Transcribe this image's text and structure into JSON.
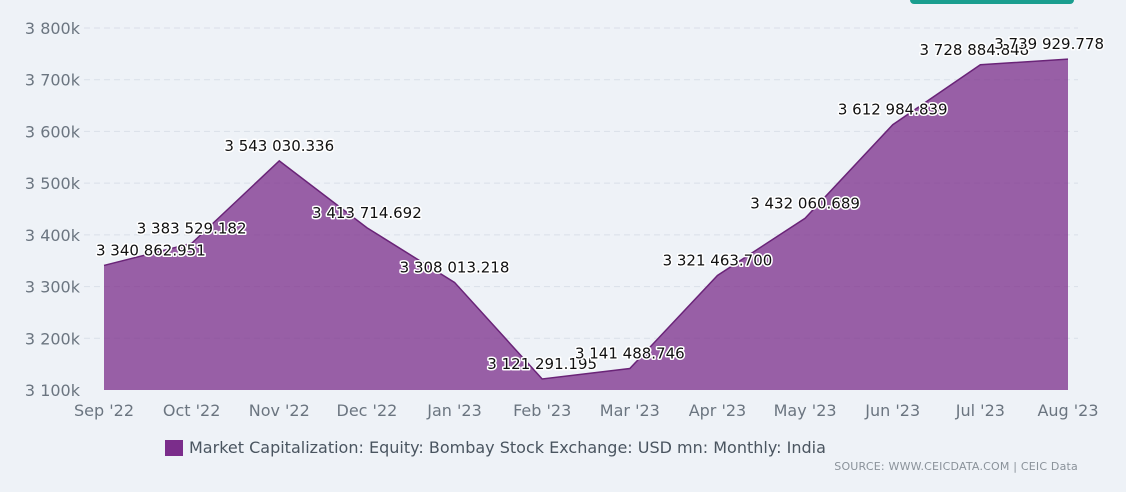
{
  "chart_data": {
    "type": "area",
    "categories": [
      "Sep '22",
      "Oct '22",
      "Nov '22",
      "Dec '22",
      "Jan '23",
      "Feb '23",
      "Mar '23",
      "Apr '23",
      "May '23",
      "Jun '23",
      "Jul '23",
      "Aug '23"
    ],
    "series": [
      {
        "name": "Market Capitalization: Equity: Bombay Stock Exchange: USD mn: Monthly: India",
        "values": [
          3340862.951,
          3383529.182,
          3543030.336,
          3413714.692,
          3308013.218,
          3121291.195,
          3141488.746,
          3321463.7,
          3432060.689,
          3612984.839,
          3728884.848,
          3739929.778
        ],
        "labels": [
          "3 340 862.951",
          "3 383 529.182",
          "3 543 030.336",
          "3 413 714.692",
          "3 308 013.218",
          "3 121 291.195",
          "3 141 488.746",
          "3 321 463.700",
          "3 432 060.689",
          "3 612 984.839",
          "3 728 884.848",
          "3 739 929.778"
        ],
        "color": "#7b2d8b"
      }
    ],
    "yticks": [
      3100000,
      3200000,
      3300000,
      3400000,
      3500000,
      3600000,
      3700000,
      3800000
    ],
    "ytick_labels": [
      "3 100k",
      "3 200k",
      "3 300k",
      "3 400k",
      "3 500k",
      "3 600k",
      "3 700k",
      "3 800k"
    ],
    "ylim": [
      3100000,
      3800000
    ],
    "grid": true,
    "legend_position": "bottom-left"
  },
  "legend": {
    "label": "Market Capitalization: Equity: Bombay Stock Exchange: USD mn: Monthly: India"
  },
  "source": "SOURCE: WWW.CEICDATA.COM | CEIC Data",
  "colors": {
    "area": "#7b2d8b",
    "line": "#6a2478",
    "grid": "#d9dfe8",
    "axis_text": "#6b7580"
  }
}
